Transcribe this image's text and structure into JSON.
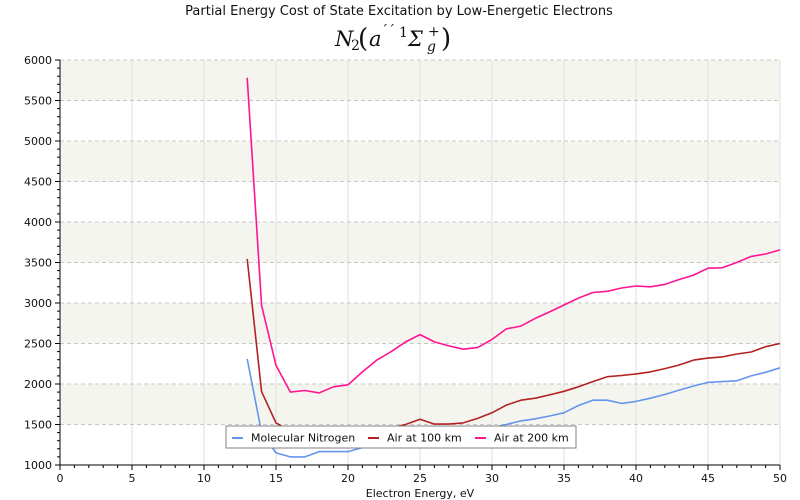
{
  "chart_data": {
    "type": "line",
    "title": "Partial Energy Cost of State Excitation by Low-Energetic Electrons",
    "subtitle": {
      "molecule": "N",
      "molecule_subscript": "2",
      "state_letter": "a",
      "primes": "´´",
      "multiplicity": "1",
      "term": "Σ",
      "term_superscript": "+",
      "term_subscript": "g"
    },
    "xlabel": "Electron Energy, eV",
    "ylabel": "",
    "xlim": [
      0,
      50
    ],
    "ylim": [
      1000,
      6000
    ],
    "xticks": [
      0,
      5,
      10,
      15,
      20,
      25,
      30,
      35,
      40,
      45,
      50
    ],
    "yticks": [
      1000,
      1500,
      2000,
      2500,
      3000,
      3500,
      4000,
      4500,
      5000,
      5500,
      6000
    ],
    "grid": {
      "horizontal": "dashed",
      "vertical": "solid",
      "alternating_bands": true
    },
    "legend_position": "bottom-center",
    "x": [
      13,
      14,
      15,
      16,
      17,
      18,
      19,
      20,
      21,
      22,
      23,
      24,
      25,
      26,
      27,
      28,
      29,
      30,
      31,
      32,
      33,
      34,
      35,
      36,
      37,
      38,
      39,
      40,
      41,
      42,
      43,
      44,
      45,
      46,
      47,
      48,
      49,
      50
    ],
    "series": [
      {
        "name": "Molecular Nitrogen",
        "color": "#6495ed",
        "values": [
          2310,
          1400,
          1150,
          1100,
          1100,
          1165,
          1165,
          1165,
          1215,
          1240,
          1260,
          1280,
          1320,
          1330,
          1350,
          1380,
          1420,
          1460,
          1500,
          1545,
          1570,
          1605,
          1645,
          1735,
          1800,
          1800,
          1760,
          1785,
          1825,
          1870,
          1925,
          1975,
          2020,
          2030,
          2040,
          2100,
          2145,
          2200
        ]
      },
      {
        "name": "Air at 100 km",
        "color": "#b22222",
        "values": [
          3545,
          1905,
          1520,
          1420,
          1400,
          1410,
          1400,
          1410,
          1420,
          1440,
          1460,
          1500,
          1565,
          1505,
          1505,
          1520,
          1575,
          1645,
          1740,
          1800,
          1825,
          1865,
          1910,
          1965,
          2030,
          2090,
          2105,
          2125,
          2150,
          2190,
          2235,
          2295,
          2320,
          2335,
          2370,
          2395,
          2460,
          2500
        ]
      },
      {
        "name": "Air at 200 km",
        "color": "#ff1493",
        "values": [
          5780,
          2970,
          2230,
          1900,
          1920,
          1890,
          1965,
          1990,
          2150,
          2295,
          2400,
          2520,
          2610,
          2520,
          2470,
          2430,
          2450,
          2550,
          2680,
          2715,
          2810,
          2890,
          2975,
          3060,
          3130,
          3145,
          3185,
          3210,
          3200,
          3230,
          3290,
          3345,
          3430,
          3435,
          3500,
          3575,
          3605,
          3655
        ]
      }
    ]
  }
}
